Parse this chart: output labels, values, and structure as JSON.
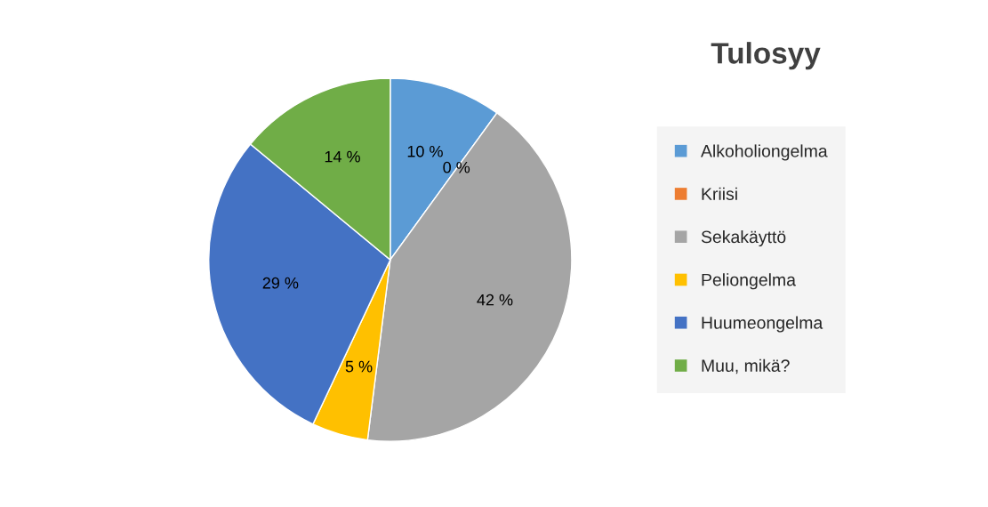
{
  "chart_data": {
    "type": "pie",
    "title": "Tulosyy",
    "categories": [
      "Alkoholiongelma",
      "Kriisi",
      "Sekakäyttö",
      "Peliongelma",
      "Huumeongelma",
      "Muu, mikä?"
    ],
    "values": [
      10,
      0,
      42,
      5,
      29,
      14
    ],
    "value_labels": [
      "10 %",
      "0 %",
      "42 %",
      "5 %",
      "29 %",
      "14 %"
    ],
    "colors": [
      "#5b9bd5",
      "#ed7d31",
      "#a5a5a5",
      "#ffc000",
      "#4472c4",
      "#70ad47"
    ],
    "legend": "right"
  }
}
